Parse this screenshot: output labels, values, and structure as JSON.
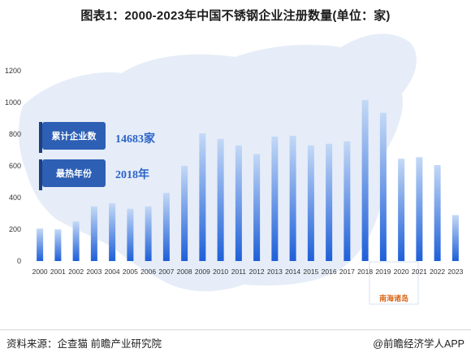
{
  "title": "图表1：2000-2023年中国不锈钢企业注册数量(单位：家)",
  "chart_data": {
    "type": "bar",
    "categories": [
      "2000",
      "2001",
      "2002",
      "2003",
      "2004",
      "2005",
      "2006",
      "2007",
      "2008",
      "2009",
      "2010",
      "2011",
      "2012",
      "2013",
      "2014",
      "2015",
      "2016",
      "2017",
      "2018",
      "2019",
      "2020",
      "2021",
      "2022",
      "2023"
    ],
    "values": [
      205,
      200,
      250,
      345,
      365,
      330,
      345,
      430,
      600,
      805,
      770,
      730,
      675,
      785,
      790,
      730,
      740,
      755,
      1015,
      935,
      645,
      655,
      605,
      290
    ],
    "ylim": [
      0,
      1200
    ],
    "yticks": [
      0,
      200,
      400,
      600,
      800,
      1000,
      1200
    ],
    "xlabel": "",
    "ylabel": "",
    "grid": false
  },
  "callouts": [
    {
      "label": "累计企业数",
      "value": "14683家"
    },
    {
      "label": "最热年份",
      "value": "2018年"
    }
  ],
  "map_label": "南海诸岛",
  "footer": {
    "source": "资料来源：企查猫 前瞻产业研究院",
    "brand": "@前瞻经济学人APP"
  },
  "colors": {
    "bar_top": "#c4d9f6",
    "bar_bottom": "#1e5fd8",
    "callout_bg": "#2d5fb4",
    "callout_value": "#2b63c8",
    "map": "#e4ecf7"
  }
}
